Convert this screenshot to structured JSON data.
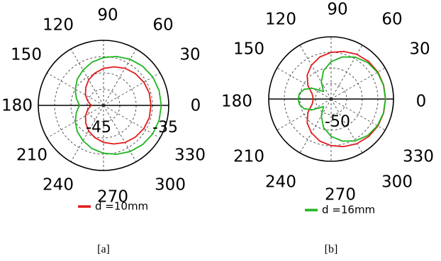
{
  "chart_data": [
    {
      "type": "polar",
      "caption": "[a]",
      "angle_unit": "deg",
      "angle_labels": [
        "90",
        "60",
        "30",
        "0",
        "330",
        "300",
        "270",
        "240",
        "210",
        "180",
        "150",
        "120"
      ],
      "radial_labels": [
        "-45",
        "-35"
      ],
      "rlim": [
        -52,
        -30
      ],
      "grid": true,
      "legend_position": "bottom",
      "series": [
        {
          "name": "d =10mm",
          "color": "#e41a1c",
          "theta": [
            0,
            15,
            30,
            45,
            60,
            75,
            90,
            105,
            120,
            135,
            150,
            165,
            175,
            180,
            185,
            195,
            210,
            225,
            240,
            255,
            270,
            285,
            300,
            315,
            330,
            345
          ],
          "r": [
            -36,
            -36,
            -36.3,
            -36.8,
            -37.5,
            -38.5,
            -39.5,
            -40.7,
            -42,
            -43.5,
            -45,
            -46.5,
            -47.5,
            -48,
            -47.5,
            -46.5,
            -45,
            -43.5,
            -42,
            -40.7,
            -39.5,
            -38.5,
            -37.5,
            -36.8,
            -36.3,
            -36
          ]
        },
        {
          "name": "",
          "color": "#1fb51f",
          "theta": [
            0,
            15,
            30,
            45,
            60,
            75,
            90,
            105,
            120,
            135,
            150,
            165,
            175,
            180,
            185,
            195,
            210,
            225,
            240,
            255,
            270,
            285,
            300,
            315,
            330,
            345
          ],
          "r": [
            -32.5,
            -32.6,
            -32.8,
            -33.3,
            -34,
            -34.9,
            -35.8,
            -36.9,
            -38.2,
            -39.5,
            -41,
            -42.5,
            -43.5,
            -44,
            -43.5,
            -42.5,
            -41,
            -39.5,
            -38.2,
            -36.9,
            -35.8,
            -34.9,
            -34,
            -33.3,
            -32.8,
            -32.6
          ]
        }
      ]
    },
    {
      "type": "polar",
      "caption": "[b]",
      "angle_unit": "deg",
      "angle_labels": [
        "90",
        "60",
        "30",
        "0",
        "330",
        "300",
        "270",
        "240",
        "210",
        "180",
        "150",
        "120"
      ],
      "radial_labels": [
        "-50"
      ],
      "rlim": [
        -65,
        -30
      ],
      "grid": true,
      "legend_position": "bottom",
      "series": [
        {
          "name": "",
          "color": "#e41a1c",
          "theta": [
            0,
            15,
            30,
            45,
            60,
            75,
            90,
            105,
            120,
            135,
            150,
            165,
            180,
            195,
            210,
            225,
            240,
            255,
            270,
            285,
            300,
            315,
            330,
            345
          ],
          "r": [
            -34.5,
            -34.5,
            -34.7,
            -35.2,
            -36,
            -37.3,
            -38.8,
            -40.5,
            -43,
            -46,
            -50,
            -54,
            -55,
            -54,
            -50,
            -46,
            -43,
            -40.5,
            -38.8,
            -37.3,
            -36,
            -35.2,
            -34.7,
            -34.5
          ]
        },
        {
          "name": "d =16mm",
          "color": "#1fb51f",
          "theta": [
            0,
            15,
            30,
            45,
            60,
            75,
            90,
            105,
            120,
            135,
            150,
            160,
            170,
            180,
            190,
            200,
            210,
            225,
            240,
            255,
            270,
            285,
            300,
            315,
            330,
            345
          ],
          "r": [
            -34.5,
            -34.6,
            -35,
            -36,
            -37.8,
            -40.5,
            -44,
            -48.5,
            -54,
            -59,
            -53,
            -49,
            -47,
            -46.5,
            -47,
            -49,
            -53,
            -59,
            -54,
            -48.5,
            -44,
            -40.5,
            -37.8,
            -36,
            -35,
            -34.6
          ]
        }
      ]
    }
  ]
}
